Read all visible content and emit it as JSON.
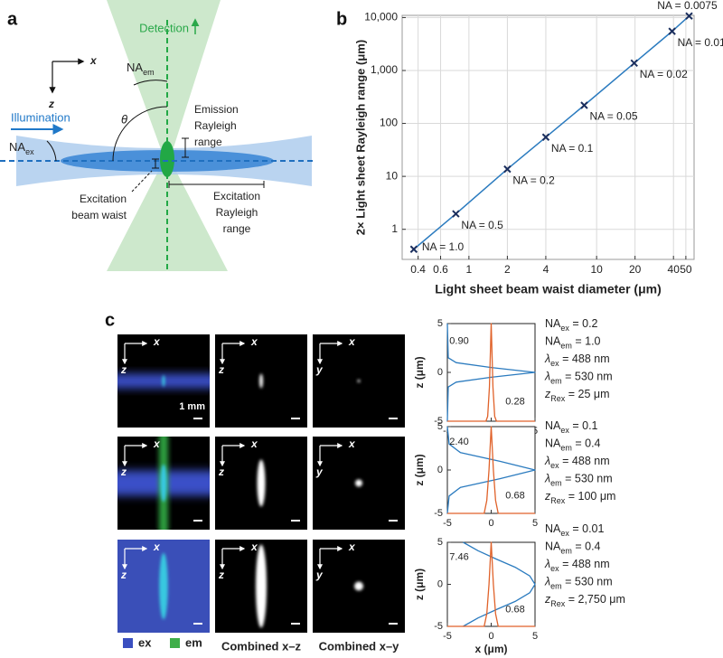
{
  "panel_a": {
    "label": "a",
    "detection": "Detection",
    "axis_x": "x",
    "axis_z": "z",
    "na_em": {
      "main": "NA",
      "sub": "em"
    },
    "theta": "θ",
    "illumination": "Illumination",
    "na_ex": {
      "main": "NA",
      "sub": "ex"
    },
    "emission_rayleigh_range": [
      "Emission",
      "Rayleigh",
      "range"
    ],
    "excitation_beam_waist": [
      "Excitation",
      "beam waist"
    ],
    "excitation_rayleigh_range": [
      "Excitation",
      "Rayleigh",
      "range"
    ]
  },
  "chart_data": [
    {
      "type": "line",
      "panel_label": "b",
      "x_label": "Light sheet beam waist diameter (μm)",
      "y_label": "2× Light sheet Rayleigh range (μm)",
      "log_x": true,
      "log_y": true,
      "grid": true,
      "xlim": [
        0.3,
        58
      ],
      "ylim": [
        0.27,
        11000
      ],
      "xticks": [
        0.4,
        0.6,
        1,
        2,
        4,
        10,
        20,
        40,
        50
      ],
      "yticks": [
        1,
        10,
        100,
        {
          "value": 1000,
          "label": "1,000"
        },
        {
          "value": 10000,
          "label": "10,000"
        }
      ],
      "series": [
        {
          "color": "#2b7bbf",
          "marker_color": "#1b2f5e",
          "x": [
            0.37,
            0.79,
            2.0,
            4.0,
            8.0,
            19.7,
            39,
            53
          ],
          "values": [
            0.42,
            1.96,
            13.7,
            55,
            220,
            1380,
            5500,
            10700
          ],
          "point_labels": [
            "NA = 1.0",
            "NA = 0.5",
            "NA = 0.2",
            "NA = 0.1",
            "NA = 0.05",
            "NA = 0.02",
            "NA = 0.01",
            "NA = 0.0075"
          ]
        }
      ]
    },
    {
      "type": "line",
      "y_label": "z (μm)",
      "xlim": [
        -5,
        5
      ],
      "ylim": [
        -5,
        5
      ],
      "xticks": [
        -5,
        0,
        5
      ],
      "yticks": [
        -5,
        0,
        5
      ],
      "grid": false,
      "annotations": [
        "0.90",
        "0.28"
      ],
      "series": [
        {
          "color": "#2b7bbf",
          "x": [
            -5,
            -4.9,
            -4,
            0,
            5,
            0,
            -4,
            -4.9,
            -5
          ],
          "values": [
            -5,
            -1.5,
            -1,
            -0.5,
            0,
            0.5,
            1,
            1.5,
            5
          ]
        },
        {
          "color": "#e0622a",
          "x": [
            -5,
            -0.6,
            -0.4,
            -0.2,
            0,
            0.2,
            0.4,
            0.6,
            5
          ],
          "values": [
            -5,
            -5,
            -4.5,
            -1.5,
            5,
            -1.5,
            -4.5,
            -5,
            -5
          ]
        }
      ]
    },
    {
      "type": "line",
      "y_label": "z (μm)",
      "xlim": [
        -5,
        5
      ],
      "ylim": [
        -5,
        5
      ],
      "xticks": [
        -5,
        0,
        5
      ],
      "yticks": [
        -5,
        0,
        5
      ],
      "grid": false,
      "annotations": [
        "2.40",
        "0.68"
      ],
      "series": [
        {
          "color": "#2b7bbf",
          "x": [
            -5,
            -4.8,
            -3.5,
            1,
            5,
            1,
            -3.5,
            -4.8,
            -5
          ],
          "values": [
            -5,
            -3,
            -2,
            -1,
            0,
            1,
            2,
            3,
            5
          ]
        },
        {
          "color": "#e0622a",
          "x": [
            -5,
            -0.8,
            -0.5,
            -0.25,
            0,
            0.25,
            0.5,
            0.8,
            5
          ],
          "values": [
            -5,
            -5,
            -3.5,
            0,
            5,
            0,
            -3.5,
            -5,
            -5
          ]
        }
      ]
    },
    {
      "type": "line",
      "y_label": "z (μm)",
      "x_label": "x (μm)",
      "xlim": [
        -5,
        5
      ],
      "ylim": [
        -5,
        5
      ],
      "xticks": [
        -5,
        0,
        5
      ],
      "yticks": [
        -5,
        0,
        5
      ],
      "grid": false,
      "annotations": [
        "7.46",
        "0.68"
      ],
      "series": [
        {
          "color": "#2b7bbf",
          "x": [
            -3.2,
            -1.5,
            0.6,
            2.8,
            4.4,
            5,
            4.4,
            2.8,
            0.6,
            -1.5,
            -3.2
          ],
          "values": [
            -5,
            -4,
            -3,
            -2,
            -1,
            0,
            1,
            2,
            3,
            4,
            5
          ]
        },
        {
          "color": "#e0622a",
          "x": [
            -5,
            -0.8,
            -0.5,
            -0.25,
            0,
            0.25,
            0.5,
            0.8,
            5
          ],
          "values": [
            -5,
            -5,
            -3.5,
            0,
            5,
            0,
            -3.5,
            -5,
            -5
          ]
        }
      ]
    }
  ],
  "panel_c": {
    "label": "c",
    "rows": [
      {
        "tiles": [
          {
            "h": "x",
            "v": "z"
          },
          {
            "h": "x",
            "v": "z"
          },
          {
            "h": "x",
            "v": "y"
          }
        ],
        "scale_bar": "1 mm",
        "params": [
          {
            "sym": "NA",
            "sub": "ex",
            "rest": " = 0.2",
            "italic": false
          },
          {
            "sym": "NA",
            "sub": "em",
            "rest": " = 1.0",
            "italic": false
          },
          {
            "sym": "λ",
            "sub": "ex",
            "rest": " = 488 nm",
            "italic": true
          },
          {
            "sym": "λ",
            "sub": "em",
            "rest": " = 530 nm",
            "italic": true
          },
          {
            "sym": "z",
            "sub": "Rex",
            "rest": " = 25 μm",
            "italic": true
          }
        ]
      },
      {
        "tiles": [
          {
            "h": "x",
            "v": "z"
          },
          {
            "h": "x",
            "v": "z"
          },
          {
            "h": "x",
            "v": "y"
          }
        ],
        "params": [
          {
            "sym": "NA",
            "sub": "ex",
            "rest": " = 0.1",
            "italic": false
          },
          {
            "sym": "NA",
            "sub": "em",
            "rest": " = 0.4",
            "italic": false
          },
          {
            "sym": "λ",
            "sub": "ex",
            "rest": " = 488 nm",
            "italic": true
          },
          {
            "sym": "λ",
            "sub": "em",
            "rest": " = 530 nm",
            "italic": true
          },
          {
            "sym": "z",
            "sub": "Rex",
            "rest": " = 100 μm",
            "italic": true
          }
        ]
      },
      {
        "tiles": [
          {
            "h": "x",
            "v": "z"
          },
          {
            "h": "x",
            "v": "z"
          },
          {
            "h": "x",
            "v": "y"
          }
        ],
        "params": [
          {
            "sym": "NA",
            "sub": "ex",
            "rest": " = 0.01",
            "italic": false
          },
          {
            "sym": "NA",
            "sub": "em",
            "rest": " = 0.4",
            "italic": false
          },
          {
            "sym": "λ",
            "sub": "ex",
            "rest": " = 488 nm",
            "italic": true
          },
          {
            "sym": "λ",
            "sub": "em",
            "rest": " = 530 nm",
            "italic": true
          },
          {
            "sym": "z",
            "sub": "Rex",
            "rest": " = 2,750 μm",
            "italic": true
          }
        ]
      }
    ],
    "legend": [
      {
        "name": "ex",
        "color": "#3a4fc0"
      },
      {
        "name": "em",
        "color": "#3fae49"
      }
    ],
    "column_titles": [
      "Combined x–z",
      "Combined x–y"
    ]
  }
}
